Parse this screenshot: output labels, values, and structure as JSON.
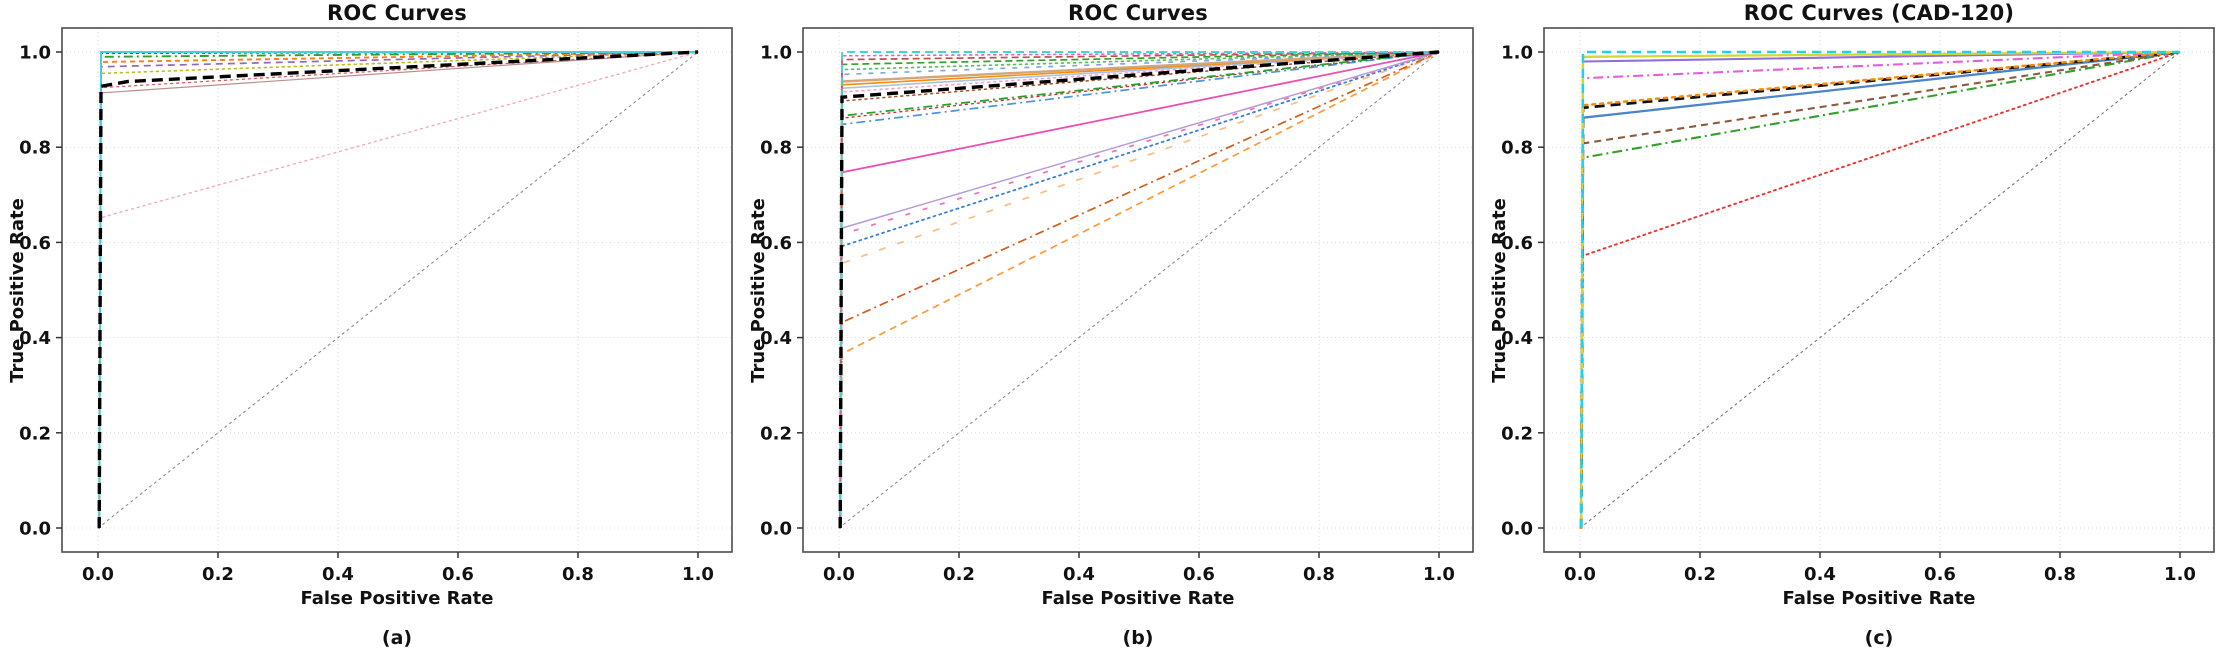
{
  "figure": {
    "background": "#ffffff"
  },
  "chart_data": [
    {
      "id": "a",
      "type": "line",
      "title": "ROC Curves",
      "caption": "(a)",
      "xlabel": "False Positive Rate",
      "ylabel": "True Positive Rate",
      "xlim": [
        0.0,
        1.0
      ],
      "ylim": [
        0.0,
        1.0
      ],
      "xticks": [
        "0.0",
        "0.2",
        "0.4",
        "0.6",
        "0.8",
        "1.0"
      ],
      "yticks": [
        "0.0",
        "0.2",
        "0.4",
        "0.6",
        "0.8",
        "1.0"
      ],
      "grid": true,
      "legend": "none",
      "diagonal": {
        "name": "chance-line",
        "color": "#8c8c8c",
        "dash": "2,4",
        "width": 1.1,
        "points": [
          [
            0,
            0
          ],
          [
            1,
            1
          ]
        ]
      },
      "curves": [
        {
          "name": "pink-dotted",
          "color": "#f5a8c5",
          "dash": "2,4",
          "width": 1.4,
          "tpr_at_fpr0": 0.65,
          "points": [
            [
              0.002,
              0
            ],
            [
              0.005,
              0.652
            ],
            [
              1,
              1
            ]
          ]
        },
        {
          "name": "rosybrown-solid",
          "color": "#bc8f8f",
          "dash": "",
          "width": 1.2,
          "tpr_at_fpr0": 0.914,
          "points": [
            [
              0.002,
              0
            ],
            [
              0.005,
              0.914
            ],
            [
              1,
              1
            ]
          ]
        },
        {
          "name": "red-dotted",
          "color": "#d95f5f",
          "dash": "2,4",
          "width": 1.3,
          "tpr_at_fpr0": 0.925,
          "points": [
            [
              0.002,
              0
            ],
            [
              0.005,
              0.925
            ],
            [
              1,
              1
            ]
          ]
        },
        {
          "name": "olive-dotted",
          "color": "#bcbd22",
          "dash": "2,4",
          "width": 1.6,
          "tpr_at_fpr0": 0.955,
          "points": [
            [
              0.002,
              0
            ],
            [
              0.005,
              0.955
            ],
            [
              1,
              1
            ]
          ]
        },
        {
          "name": "purple-dashed",
          "color": "#9467bd",
          "dash": "7,5",
          "width": 1.7,
          "tpr_at_fpr0": 0.969,
          "points": [
            [
              0.002,
              0
            ],
            [
              0.005,
              0.969
            ],
            [
              1,
              1
            ]
          ]
        },
        {
          "name": "orange-dashed",
          "color": "#ff7f0e",
          "dash": "5,4",
          "width": 1.9,
          "tpr_at_fpr0": 0.979,
          "points": [
            [
              0.002,
              0
            ],
            [
              0.005,
              0.979
            ],
            [
              1,
              1
            ]
          ]
        },
        {
          "name": "green-dashdot",
          "color": "#2ca02c",
          "dash": "9,4,2,4",
          "width": 1.9,
          "tpr_at_fpr0": 0.99,
          "points": [
            [
              0.002,
              0
            ],
            [
              0.005,
              0.99
            ],
            [
              1,
              1
            ]
          ]
        },
        {
          "name": "red-dotted-top",
          "color": "#d62728",
          "dash": "2,4",
          "width": 1.4,
          "tpr_at_fpr0": 0.997,
          "points": [
            [
              0.002,
              0
            ],
            [
              0.005,
              0.997
            ],
            [
              1,
              1
            ]
          ]
        },
        {
          "name": "cyan-solid",
          "color": "#45d0dc",
          "dash": "",
          "width": 1.9,
          "tpr_at_fpr0": 1.0,
          "points": [
            [
              0.002,
              0
            ],
            [
              0.005,
              1.0
            ],
            [
              1,
              1
            ]
          ]
        },
        {
          "name": "black-dashed",
          "color": "#000000",
          "dash": "11,6",
          "width": 3.4,
          "tpr_at_fpr0": 0.93,
          "points": [
            [
              0.002,
              0
            ],
            [
              0.005,
              0.928
            ],
            [
              0.05,
              0.938
            ],
            [
              1,
              1
            ]
          ]
        }
      ]
    },
    {
      "id": "b",
      "type": "line",
      "title": "ROC Curves",
      "caption": "(b)",
      "xlabel": "False Positive Rate",
      "ylabel": "True Positive Rate",
      "xlim": [
        0.0,
        1.0
      ],
      "ylim": [
        0.0,
        1.0
      ],
      "xticks": [
        "0.0",
        "0.2",
        "0.4",
        "0.6",
        "0.8",
        "1.0"
      ],
      "yticks": [
        "0.0",
        "0.2",
        "0.4",
        "0.6",
        "0.8",
        "1.0"
      ],
      "grid": true,
      "legend": "none",
      "diagonal": {
        "name": "chance-line",
        "color": "#8c8c8c",
        "dash": "2,4",
        "width": 1.1,
        "points": [
          [
            0,
            0
          ],
          [
            1,
            1
          ]
        ]
      },
      "curves": [
        {
          "name": "orange-dashed-low",
          "color": "#ff9838",
          "dash": "7,5",
          "width": 1.7,
          "tpr_at_fpr0": 0.366,
          "points": [
            [
              0.002,
              0
            ],
            [
              0.005,
              0.366
            ],
            [
              1,
              1
            ]
          ]
        },
        {
          "name": "chocolate-dashdot",
          "color": "#cc5f1e",
          "dash": "9,4,2,4",
          "width": 1.7,
          "tpr_at_fpr0": 0.432,
          "points": [
            [
              0.002,
              0
            ],
            [
              0.005,
              0.432
            ],
            [
              1,
              1
            ]
          ]
        },
        {
          "name": "lightorange-sparse-dashed",
          "color": "#ffbb80",
          "dash": "7,12",
          "width": 1.7,
          "tpr_at_fpr0": 0.556,
          "points": [
            [
              0.002,
              0
            ],
            [
              0.005,
              0.556
            ],
            [
              1,
              1
            ]
          ]
        },
        {
          "name": "blue-dotted",
          "color": "#3a7fd5",
          "dash": "2,4",
          "width": 1.8,
          "tpr_at_fpr0": 0.592,
          "points": [
            [
              0.002,
              0
            ],
            [
              0.005,
              0.592
            ],
            [
              1,
              1
            ]
          ]
        },
        {
          "name": "pink-sparse-dashed",
          "color": "#f46fb5",
          "dash": "5,13",
          "width": 1.7,
          "tpr_at_fpr0": 0.617,
          "points": [
            [
              0.002,
              0
            ],
            [
              0.005,
              0.617
            ],
            [
              1,
              1
            ]
          ]
        },
        {
          "name": "violet-solid",
          "color": "#b79bd6",
          "dash": "",
          "width": 1.5,
          "tpr_at_fpr0": 0.63,
          "points": [
            [
              0.002,
              0
            ],
            [
              0.005,
              0.63
            ],
            [
              1,
              1
            ]
          ]
        },
        {
          "name": "magenta-solid",
          "color": "#ea4fb1",
          "dash": "",
          "width": 1.8,
          "tpr_at_fpr0": 0.747,
          "points": [
            [
              0.002,
              0
            ],
            [
              0.005,
              0.747
            ],
            [
              1,
              1
            ]
          ]
        },
        {
          "name": "blue-dashdot",
          "color": "#4a94dd",
          "dash": "9,4,2,4",
          "width": 1.7,
          "tpr_at_fpr0": 0.848,
          "points": [
            [
              0.002,
              0
            ],
            [
              0.005,
              0.848
            ],
            [
              1,
              1
            ]
          ]
        },
        {
          "name": "red-dotted-mid",
          "color": "#d62728",
          "dash": "2,4",
          "width": 1.3,
          "tpr_at_fpr0": 0.861,
          "points": [
            [
              0.002,
              0
            ],
            [
              0.005,
              0.861
            ],
            [
              1,
              1
            ]
          ]
        },
        {
          "name": "green-dashdot",
          "color": "#2ca02c",
          "dash": "9,4,2,4",
          "width": 1.8,
          "tpr_at_fpr0": 0.866,
          "points": [
            [
              0.002,
              0
            ],
            [
              0.005,
              0.866
            ],
            [
              1,
              1
            ]
          ]
        },
        {
          "name": "brown-dotted",
          "color": "#a0522d",
          "dash": "2,4",
          "width": 1.5,
          "tpr_at_fpr0": 0.897,
          "points": [
            [
              0.002,
              0
            ],
            [
              0.005,
              0.897
            ],
            [
              1,
              1
            ]
          ]
        },
        {
          "name": "pink-dotted",
          "color": "#ff9ec8",
          "dash": "2,4",
          "width": 1.6,
          "tpr_at_fpr0": 0.916,
          "points": [
            [
              0.002,
              0
            ],
            [
              0.005,
              0.916
            ],
            [
              1,
              1
            ]
          ]
        },
        {
          "name": "lightblue-solid",
          "color": "#a6c3e0",
          "dash": "",
          "width": 1.6,
          "tpr_at_fpr0": 0.924,
          "points": [
            [
              0.002,
              0
            ],
            [
              0.005,
              0.924
            ],
            [
              1,
              1
            ]
          ]
        },
        {
          "name": "orange-solid",
          "color": "#ff8c00",
          "dash": "",
          "width": 1.6,
          "tpr_at_fpr0": 0.931,
          "points": [
            [
              0.002,
              0
            ],
            [
              0.005,
              0.931
            ],
            [
              1,
              1
            ]
          ]
        },
        {
          "name": "tan-solid",
          "color": "#d2a679",
          "dash": "",
          "width": 2.4,
          "tpr_at_fpr0": 0.938,
          "points": [
            [
              0.002,
              0
            ],
            [
              0.005,
              0.938
            ],
            [
              1,
              1
            ]
          ]
        },
        {
          "name": "cornflower-dashed",
          "color": "#7da9ea",
          "dash": "5,7",
          "width": 1.7,
          "tpr_at_fpr0": 0.953,
          "points": [
            [
              0.002,
              0
            ],
            [
              0.005,
              0.953
            ],
            [
              1,
              1
            ]
          ]
        },
        {
          "name": "green-dotted",
          "color": "#5fbf5f",
          "dash": "2,4",
          "width": 1.7,
          "tpr_at_fpr0": 0.963,
          "points": [
            [
              0.002,
              0
            ],
            [
              0.005,
              0.963
            ],
            [
              1,
              1
            ]
          ]
        },
        {
          "name": "green-dashed",
          "color": "#33a02c",
          "dash": "7,4",
          "width": 1.7,
          "tpr_at_fpr0": 0.974,
          "points": [
            [
              0.002,
              0
            ],
            [
              0.005,
              0.974
            ],
            [
              1,
              1
            ]
          ]
        },
        {
          "name": "maroon-dashed",
          "color": "#c0504d",
          "dash": "7,4",
          "width": 1.7,
          "tpr_at_fpr0": 0.984,
          "points": [
            [
              0.002,
              0
            ],
            [
              0.005,
              0.984
            ],
            [
              1,
              1
            ]
          ]
        },
        {
          "name": "magenta-dotted",
          "color": "#d667c9",
          "dash": "2,4",
          "width": 1.6,
          "tpr_at_fpr0": 0.992,
          "points": [
            [
              0.002,
              0
            ],
            [
              0.005,
              0.992
            ],
            [
              1,
              1
            ]
          ]
        },
        {
          "name": "cyan-dashed",
          "color": "#3fd6d6",
          "dash": "8,5",
          "width": 1.9,
          "tpr_at_fpr0": 1.0,
          "points": [
            [
              0.002,
              0
            ],
            [
              0.005,
              1.0
            ],
            [
              1,
              1
            ]
          ]
        },
        {
          "name": "black-dashed",
          "color": "#000000",
          "dash": "11,6",
          "width": 3.4,
          "tpr_at_fpr0": 0.905,
          "points": [
            [
              0.002,
              0
            ],
            [
              0.005,
              0.905
            ],
            [
              1,
              1
            ]
          ]
        }
      ]
    },
    {
      "id": "c",
      "type": "line",
      "title": "ROC Curves (CAD-120)",
      "caption": "(c)",
      "xlabel": "False Positive Rate",
      "ylabel": "True Positive Rate",
      "xlim": [
        0.0,
        1.0
      ],
      "ylim": [
        0.0,
        1.0
      ],
      "xticks": [
        "0.0",
        "0.2",
        "0.4",
        "0.6",
        "0.8",
        "1.0"
      ],
      "yticks": [
        "0.0",
        "0.2",
        "0.4",
        "0.6",
        "0.8",
        "1.0"
      ],
      "grid": true,
      "legend": "none",
      "diagonal": {
        "name": "chance-line",
        "color": "#777777",
        "dash": "2,4",
        "width": 1.1,
        "points": [
          [
            0,
            0
          ],
          [
            1,
            1
          ]
        ]
      },
      "curves": [
        {
          "name": "red-dotted",
          "color": "#ee3333",
          "dash": "2,4",
          "width": 1.9,
          "tpr_at_fpr0": 0.572,
          "points": [
            [
              0.002,
              0
            ],
            [
              0.005,
              0.572
            ],
            [
              1,
              1
            ]
          ]
        },
        {
          "name": "green-dashdot",
          "color": "#33a02c",
          "dash": "10,4,2,4",
          "width": 2.1,
          "tpr_at_fpr0": 0.778,
          "points": [
            [
              0.002,
              0
            ],
            [
              0.005,
              0.778
            ],
            [
              1,
              1
            ]
          ]
        },
        {
          "name": "brown-dashed",
          "color": "#8b5a3c",
          "dash": "7,5",
          "width": 2.1,
          "tpr_at_fpr0": 0.808,
          "points": [
            [
              0.002,
              0
            ],
            [
              0.005,
              0.808
            ],
            [
              1,
              1
            ]
          ]
        },
        {
          "name": "blue-solid",
          "color": "#4a86c8",
          "dash": "",
          "width": 2.3,
          "tpr_at_fpr0": 0.862,
          "points": [
            [
              0.002,
              0
            ],
            [
              0.005,
              0.862
            ],
            [
              1,
              1
            ]
          ]
        },
        {
          "name": "black-dashed",
          "color": "#111111",
          "dash": "10,6",
          "width": 2.8,
          "tpr_at_fpr0": 0.883,
          "points": [
            [
              0.002,
              0
            ],
            [
              0.005,
              0.883
            ],
            [
              1,
              1
            ]
          ]
        },
        {
          "name": "orange-dotted",
          "color": "#ff8c00",
          "dash": "3,5",
          "width": 2.5,
          "tpr_at_fpr0": 0.888,
          "points": [
            [
              0.002,
              0
            ],
            [
              0.005,
              0.888
            ],
            [
              1,
              1
            ]
          ]
        },
        {
          "name": "orchid-dashdot",
          "color": "#e25fd8",
          "dash": "10,4,2,4",
          "width": 2.1,
          "tpr_at_fpr0": 0.945,
          "points": [
            [
              0.002,
              0
            ],
            [
              0.005,
              0.945
            ],
            [
              1,
              1
            ]
          ]
        },
        {
          "name": "purple-solid",
          "color": "#8f6fd8",
          "dash": "",
          "width": 2.1,
          "tpr_at_fpr0": 0.98,
          "points": [
            [
              0.002,
              0
            ],
            [
              0.005,
              0.98
            ],
            [
              1,
              1
            ]
          ]
        },
        {
          "name": "yellow-solid",
          "color": "#d6d632",
          "dash": "",
          "width": 2.3,
          "tpr_at_fpr0": 0.99,
          "points": [
            [
              0.002,
              0
            ],
            [
              0.005,
              0.99
            ],
            [
              1,
              1
            ]
          ]
        },
        {
          "name": "cyan-dashed",
          "color": "#21d2e6",
          "dash": "9,6",
          "width": 2.5,
          "tpr_at_fpr0": 1.0,
          "points": [
            [
              0.002,
              0
            ],
            [
              0.005,
              1.0
            ],
            [
              1,
              1
            ]
          ]
        }
      ]
    }
  ]
}
